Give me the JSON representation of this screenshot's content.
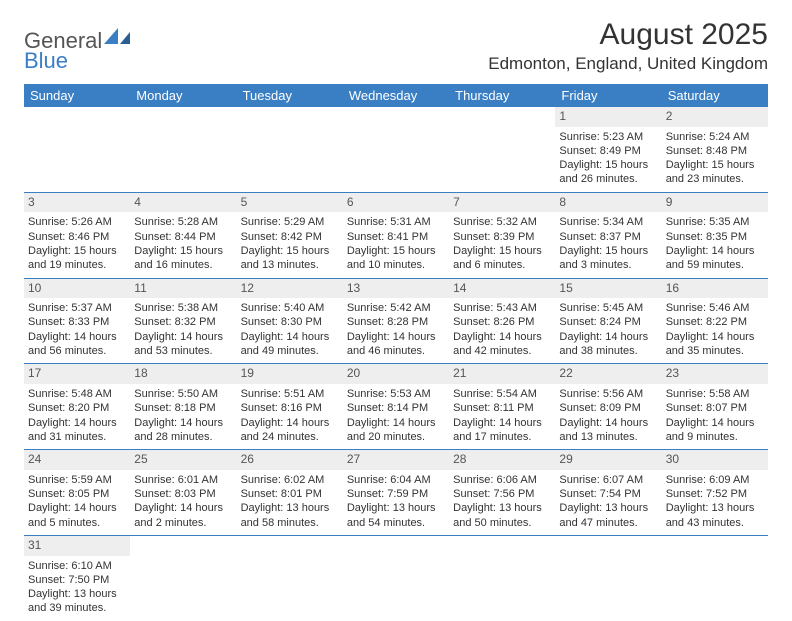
{
  "logo": {
    "general": "General",
    "blue": "Blue"
  },
  "title": {
    "month": "August 2025",
    "location": "Edmonton, England, United Kingdom"
  },
  "colors": {
    "header_bg": "#3a7fc4",
    "header_fg": "#ffffff",
    "daynum_bg": "#eeeeee",
    "line": "#3a7fc4"
  },
  "day_headers": [
    "Sunday",
    "Monday",
    "Tuesday",
    "Wednesday",
    "Thursday",
    "Friday",
    "Saturday"
  ],
  "weeks": [
    [
      {
        "n": "",
        "sr": "",
        "ss": "",
        "dl1": "",
        "dl2": ""
      },
      {
        "n": "",
        "sr": "",
        "ss": "",
        "dl1": "",
        "dl2": ""
      },
      {
        "n": "",
        "sr": "",
        "ss": "",
        "dl1": "",
        "dl2": ""
      },
      {
        "n": "",
        "sr": "",
        "ss": "",
        "dl1": "",
        "dl2": ""
      },
      {
        "n": "",
        "sr": "",
        "ss": "",
        "dl1": "",
        "dl2": ""
      },
      {
        "n": "1",
        "sr": "Sunrise: 5:23 AM",
        "ss": "Sunset: 8:49 PM",
        "dl1": "Daylight: 15 hours",
        "dl2": "and 26 minutes."
      },
      {
        "n": "2",
        "sr": "Sunrise: 5:24 AM",
        "ss": "Sunset: 8:48 PM",
        "dl1": "Daylight: 15 hours",
        "dl2": "and 23 minutes."
      }
    ],
    [
      {
        "n": "3",
        "sr": "Sunrise: 5:26 AM",
        "ss": "Sunset: 8:46 PM",
        "dl1": "Daylight: 15 hours",
        "dl2": "and 19 minutes."
      },
      {
        "n": "4",
        "sr": "Sunrise: 5:28 AM",
        "ss": "Sunset: 8:44 PM",
        "dl1": "Daylight: 15 hours",
        "dl2": "and 16 minutes."
      },
      {
        "n": "5",
        "sr": "Sunrise: 5:29 AM",
        "ss": "Sunset: 8:42 PM",
        "dl1": "Daylight: 15 hours",
        "dl2": "and 13 minutes."
      },
      {
        "n": "6",
        "sr": "Sunrise: 5:31 AM",
        "ss": "Sunset: 8:41 PM",
        "dl1": "Daylight: 15 hours",
        "dl2": "and 10 minutes."
      },
      {
        "n": "7",
        "sr": "Sunrise: 5:32 AM",
        "ss": "Sunset: 8:39 PM",
        "dl1": "Daylight: 15 hours",
        "dl2": "and 6 minutes."
      },
      {
        "n": "8",
        "sr": "Sunrise: 5:34 AM",
        "ss": "Sunset: 8:37 PM",
        "dl1": "Daylight: 15 hours",
        "dl2": "and 3 minutes."
      },
      {
        "n": "9",
        "sr": "Sunrise: 5:35 AM",
        "ss": "Sunset: 8:35 PM",
        "dl1": "Daylight: 14 hours",
        "dl2": "and 59 minutes."
      }
    ],
    [
      {
        "n": "10",
        "sr": "Sunrise: 5:37 AM",
        "ss": "Sunset: 8:33 PM",
        "dl1": "Daylight: 14 hours",
        "dl2": "and 56 minutes."
      },
      {
        "n": "11",
        "sr": "Sunrise: 5:38 AM",
        "ss": "Sunset: 8:32 PM",
        "dl1": "Daylight: 14 hours",
        "dl2": "and 53 minutes."
      },
      {
        "n": "12",
        "sr": "Sunrise: 5:40 AM",
        "ss": "Sunset: 8:30 PM",
        "dl1": "Daylight: 14 hours",
        "dl2": "and 49 minutes."
      },
      {
        "n": "13",
        "sr": "Sunrise: 5:42 AM",
        "ss": "Sunset: 8:28 PM",
        "dl1": "Daylight: 14 hours",
        "dl2": "and 46 minutes."
      },
      {
        "n": "14",
        "sr": "Sunrise: 5:43 AM",
        "ss": "Sunset: 8:26 PM",
        "dl1": "Daylight: 14 hours",
        "dl2": "and 42 minutes."
      },
      {
        "n": "15",
        "sr": "Sunrise: 5:45 AM",
        "ss": "Sunset: 8:24 PM",
        "dl1": "Daylight: 14 hours",
        "dl2": "and 38 minutes."
      },
      {
        "n": "16",
        "sr": "Sunrise: 5:46 AM",
        "ss": "Sunset: 8:22 PM",
        "dl1": "Daylight: 14 hours",
        "dl2": "and 35 minutes."
      }
    ],
    [
      {
        "n": "17",
        "sr": "Sunrise: 5:48 AM",
        "ss": "Sunset: 8:20 PM",
        "dl1": "Daylight: 14 hours",
        "dl2": "and 31 minutes."
      },
      {
        "n": "18",
        "sr": "Sunrise: 5:50 AM",
        "ss": "Sunset: 8:18 PM",
        "dl1": "Daylight: 14 hours",
        "dl2": "and 28 minutes."
      },
      {
        "n": "19",
        "sr": "Sunrise: 5:51 AM",
        "ss": "Sunset: 8:16 PM",
        "dl1": "Daylight: 14 hours",
        "dl2": "and 24 minutes."
      },
      {
        "n": "20",
        "sr": "Sunrise: 5:53 AM",
        "ss": "Sunset: 8:14 PM",
        "dl1": "Daylight: 14 hours",
        "dl2": "and 20 minutes."
      },
      {
        "n": "21",
        "sr": "Sunrise: 5:54 AM",
        "ss": "Sunset: 8:11 PM",
        "dl1": "Daylight: 14 hours",
        "dl2": "and 17 minutes."
      },
      {
        "n": "22",
        "sr": "Sunrise: 5:56 AM",
        "ss": "Sunset: 8:09 PM",
        "dl1": "Daylight: 14 hours",
        "dl2": "and 13 minutes."
      },
      {
        "n": "23",
        "sr": "Sunrise: 5:58 AM",
        "ss": "Sunset: 8:07 PM",
        "dl1": "Daylight: 14 hours",
        "dl2": "and 9 minutes."
      }
    ],
    [
      {
        "n": "24",
        "sr": "Sunrise: 5:59 AM",
        "ss": "Sunset: 8:05 PM",
        "dl1": "Daylight: 14 hours",
        "dl2": "and 5 minutes."
      },
      {
        "n": "25",
        "sr": "Sunrise: 6:01 AM",
        "ss": "Sunset: 8:03 PM",
        "dl1": "Daylight: 14 hours",
        "dl2": "and 2 minutes."
      },
      {
        "n": "26",
        "sr": "Sunrise: 6:02 AM",
        "ss": "Sunset: 8:01 PM",
        "dl1": "Daylight: 13 hours",
        "dl2": "and 58 minutes."
      },
      {
        "n": "27",
        "sr": "Sunrise: 6:04 AM",
        "ss": "Sunset: 7:59 PM",
        "dl1": "Daylight: 13 hours",
        "dl2": "and 54 minutes."
      },
      {
        "n": "28",
        "sr": "Sunrise: 6:06 AM",
        "ss": "Sunset: 7:56 PM",
        "dl1": "Daylight: 13 hours",
        "dl2": "and 50 minutes."
      },
      {
        "n": "29",
        "sr": "Sunrise: 6:07 AM",
        "ss": "Sunset: 7:54 PM",
        "dl1": "Daylight: 13 hours",
        "dl2": "and 47 minutes."
      },
      {
        "n": "30",
        "sr": "Sunrise: 6:09 AM",
        "ss": "Sunset: 7:52 PM",
        "dl1": "Daylight: 13 hours",
        "dl2": "and 43 minutes."
      }
    ],
    [
      {
        "n": "31",
        "sr": "Sunrise: 6:10 AM",
        "ss": "Sunset: 7:50 PM",
        "dl1": "Daylight: 13 hours",
        "dl2": "and 39 minutes."
      },
      {
        "n": "",
        "sr": "",
        "ss": "",
        "dl1": "",
        "dl2": ""
      },
      {
        "n": "",
        "sr": "",
        "ss": "",
        "dl1": "",
        "dl2": ""
      },
      {
        "n": "",
        "sr": "",
        "ss": "",
        "dl1": "",
        "dl2": ""
      },
      {
        "n": "",
        "sr": "",
        "ss": "",
        "dl1": "",
        "dl2": ""
      },
      {
        "n": "",
        "sr": "",
        "ss": "",
        "dl1": "",
        "dl2": ""
      },
      {
        "n": "",
        "sr": "",
        "ss": "",
        "dl1": "",
        "dl2": ""
      }
    ]
  ]
}
